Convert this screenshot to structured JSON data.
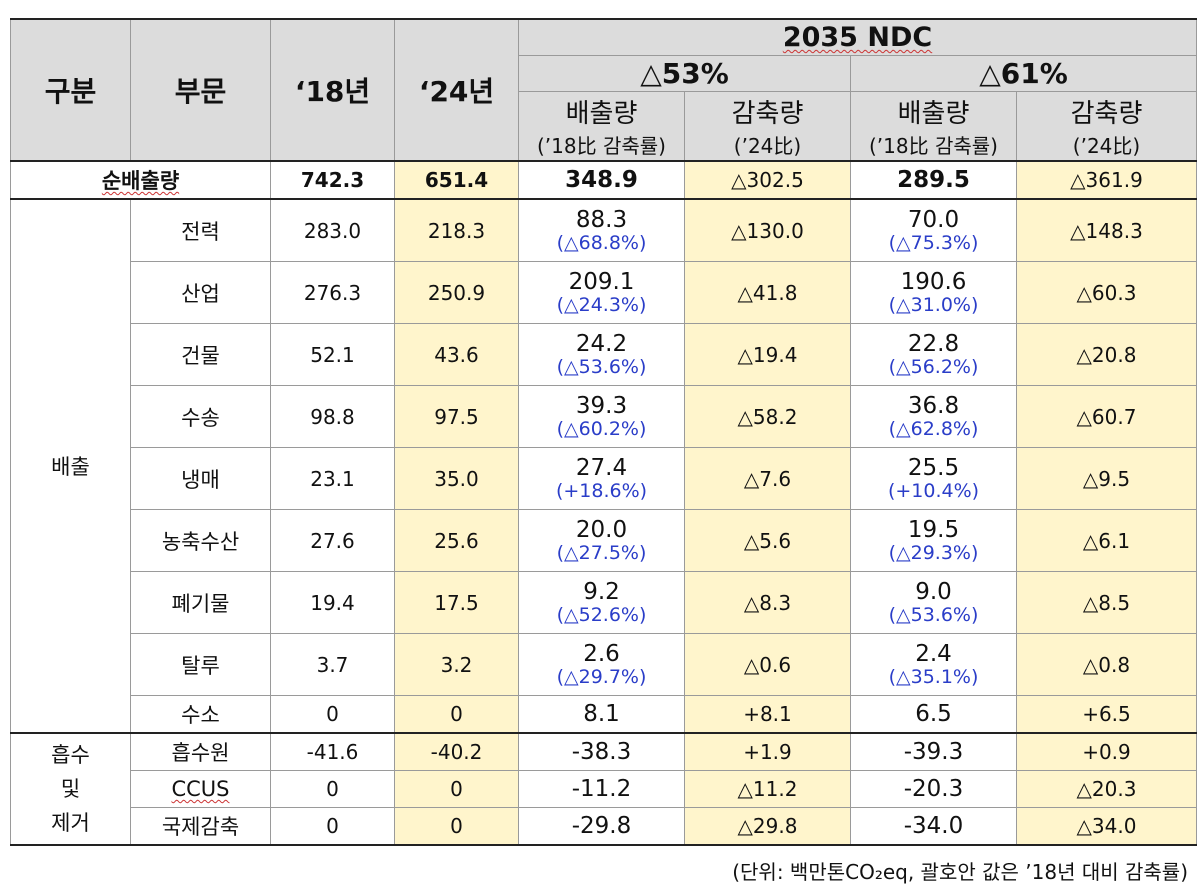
{
  "header": {
    "col_gubun": "구분",
    "col_bumun": "부문",
    "col_18": "‘18년",
    "col_24": "‘24년",
    "ndc_title": "2035 NDC",
    "scenario_53": "△53%",
    "scenario_61": "△61%",
    "emission_label": "배출량",
    "emission_sub": "(’18比 감축률)",
    "reduction_label": "감축량",
    "reduction_sub": "(’24比)"
  },
  "net": {
    "label": "순배출량",
    "v18": "742.3",
    "v24": "651.4",
    "e53": "348.9",
    "r53": "△302.5",
    "e61": "289.5",
    "r61": "△361.9"
  },
  "emission_group": "배출",
  "removal_group_lines": [
    "흡수",
    "및",
    "제거"
  ],
  "emission_rows": [
    {
      "sector": "전력",
      "v18": "283.0",
      "v24": "218.3",
      "e53": "88.3",
      "p53": "(△68.8%)",
      "r53": "△130.0",
      "e61": "70.0",
      "p61": "(△75.3%)",
      "r61": "△148.3"
    },
    {
      "sector": "산업",
      "v18": "276.3",
      "v24": "250.9",
      "e53": "209.1",
      "p53": "(△24.3%)",
      "r53": "△41.8",
      "e61": "190.6",
      "p61": "(△31.0%)",
      "r61": "△60.3"
    },
    {
      "sector": "건물",
      "v18": "52.1",
      "v24": "43.6",
      "e53": "24.2",
      "p53": "(△53.6%)",
      "r53": "△19.4",
      "e61": "22.8",
      "p61": "(△56.2%)",
      "r61": "△20.8"
    },
    {
      "sector": "수송",
      "v18": "98.8",
      "v24": "97.5",
      "e53": "39.3",
      "p53": "(△60.2%)",
      "r53": "△58.2",
      "e61": "36.8",
      "p61": "(△62.8%)",
      "r61": "△60.7"
    },
    {
      "sector": "냉매",
      "v18": "23.1",
      "v24": "35.0",
      "e53": "27.4",
      "p53": "(+18.6%)",
      "r53": "△7.6",
      "e61": "25.5",
      "p61": "(+10.4%)",
      "r61": "△9.5"
    },
    {
      "sector": "농축수산",
      "v18": "27.6",
      "v24": "25.6",
      "e53": "20.0",
      "p53": "(△27.5%)",
      "r53": "△5.6",
      "e61": "19.5",
      "p61": "(△29.3%)",
      "r61": "△6.1"
    },
    {
      "sector": "폐기물",
      "v18": "19.4",
      "v24": "17.5",
      "e53": "9.2",
      "p53": "(△52.6%)",
      "r53": "△8.3",
      "e61": "9.0",
      "p61": "(△53.6%)",
      "r61": "△8.5"
    },
    {
      "sector": "탈루",
      "v18": "3.7",
      "v24": "3.2",
      "e53": "2.6",
      "p53": "(△29.7%)",
      "r53": "△0.6",
      "e61": "2.4",
      "p61": "(△35.1%)",
      "r61": "△0.8"
    },
    {
      "sector": "수소",
      "v18": "0",
      "v24": "0",
      "e53": "8.1",
      "p53": "",
      "r53": "+8.1",
      "e61": "6.5",
      "p61": "",
      "r61": "+6.5"
    }
  ],
  "removal_rows": [
    {
      "sector": "흡수원",
      "v18": "-41.6",
      "v24": "-40.2",
      "e53": "-38.3",
      "r53": "+1.9",
      "e61": "-39.3",
      "r61": "+0.9"
    },
    {
      "sector": "CCUS",
      "v18": "0",
      "v24": "0",
      "e53": "-11.2",
      "r53": "△11.2",
      "e61": "-20.3",
      "r61": "△20.3"
    },
    {
      "sector": "국제감축",
      "v18": "0",
      "v24": "0",
      "e53": "-29.8",
      "r53": "△29.8",
      "e61": "-34.0",
      "r61": "△34.0"
    }
  ],
  "footnote": "(단위: 백만톤CO₂eq, 괄호안 값은 ’18년 대비 감축률)",
  "colors": {
    "header_bg": "#dcdcdc",
    "highlight_bg": "#fff5cc",
    "percent_text": "#2a3dc8",
    "rule": "#222222"
  }
}
